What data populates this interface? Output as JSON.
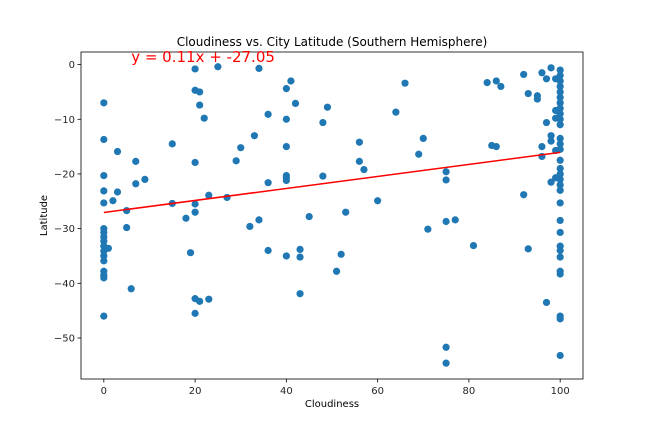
{
  "chart_data": {
    "type": "scatter",
    "title": "Cloudiness vs. City Latitude (Southern Hemisphere)",
    "xlabel": "Cloudiness",
    "ylabel": "Latitude",
    "xlim": [
      -5,
      105
    ],
    "ylim": [
      -57.5,
      2.3
    ],
    "xticks": [
      0,
      20,
      40,
      60,
      80,
      100
    ],
    "yticks": [
      0,
      -10,
      -20,
      -30,
      -40,
      -50
    ],
    "xtick_labels": [
      "0",
      "20",
      "40",
      "60",
      "80",
      "100"
    ],
    "ytick_labels": [
      "0",
      "−10",
      "−20",
      "−30",
      "−40",
      "−50"
    ],
    "grid": false,
    "point_color": "#1f77b4",
    "regression_line": {
      "slope": 0.11,
      "intercept": -27.05,
      "x_range": [
        0,
        100
      ],
      "color": "#ff0000",
      "equation": "y = 0.11x + -27.05",
      "equation_x": 6,
      "equation_y": 0.5
    },
    "points": [
      [
        0,
        -7
      ],
      [
        0,
        -13.7
      ],
      [
        0,
        -20.3
      ],
      [
        0,
        -23.1
      ],
      [
        0,
        -25.3
      ],
      [
        0,
        -30
      ],
      [
        0,
        -30.7
      ],
      [
        0,
        -31.5
      ],
      [
        0,
        -32.3
      ],
      [
        0,
        -33.2
      ],
      [
        0,
        -34.1
      ],
      [
        0,
        -35
      ],
      [
        0,
        -35.9
      ],
      [
        0,
        -37.8
      ],
      [
        0,
        -38.5
      ],
      [
        0,
        -39
      ],
      [
        0,
        -46
      ],
      [
        1,
        -33.6
      ],
      [
        2,
        -24.9
      ],
      [
        3,
        -15.9
      ],
      [
        3,
        -23.3
      ],
      [
        5,
        -26.7
      ],
      [
        5,
        -29.8
      ],
      [
        6,
        -41
      ],
      [
        7,
        -17.7
      ],
      [
        7,
        -21.8
      ],
      [
        9,
        -21
      ],
      [
        15,
        -25.4
      ],
      [
        15,
        -14.5
      ],
      [
        18,
        -28.1
      ],
      [
        19,
        -34.4
      ],
      [
        20,
        -0.8
      ],
      [
        20,
        -4.7
      ],
      [
        20,
        -17.9
      ],
      [
        20,
        -25.5
      ],
      [
        20,
        -27
      ],
      [
        20,
        -42.8
      ],
      [
        20,
        -45.5
      ],
      [
        21,
        -5
      ],
      [
        21,
        -7.4
      ],
      [
        21,
        -43.3
      ],
      [
        22,
        -9.8
      ],
      [
        23,
        -42.9
      ],
      [
        23,
        -23.9
      ],
      [
        25,
        -0.4
      ],
      [
        27,
        -24.3
      ],
      [
        29,
        -17.6
      ],
      [
        30,
        -15.2
      ],
      [
        32,
        -29.6
      ],
      [
        33,
        -13
      ],
      [
        34,
        -0.7
      ],
      [
        34,
        -28.4
      ],
      [
        36,
        -9.1
      ],
      [
        36,
        -21.6
      ],
      [
        36,
        -34
      ],
      [
        40,
        -4.4
      ],
      [
        40,
        -10
      ],
      [
        40,
        -15
      ],
      [
        40,
        -20.3
      ],
      [
        40,
        -20.7
      ],
      [
        40,
        -21.2
      ],
      [
        40,
        -35
      ],
      [
        41,
        -3
      ],
      [
        42,
        -7.1
      ],
      [
        43,
        -33.8
      ],
      [
        43,
        -35.2
      ],
      [
        43,
        -41.9
      ],
      [
        45,
        -27.8
      ],
      [
        48,
        -10.6
      ],
      [
        48,
        -20.4
      ],
      [
        49,
        -7.8
      ],
      [
        51,
        -37.8
      ],
      [
        52,
        -34.7
      ],
      [
        53,
        -27
      ],
      [
        56,
        -14.2
      ],
      [
        56,
        -17.7
      ],
      [
        57,
        -19.2
      ],
      [
        60,
        -24.9
      ],
      [
        64,
        -8.7
      ],
      [
        66,
        -3.4
      ],
      [
        69,
        -16.4
      ],
      [
        70,
        -13.5
      ],
      [
        71,
        -30.1
      ],
      [
        75,
        -19.6
      ],
      [
        75,
        -21.1
      ],
      [
        75,
        -28.7
      ],
      [
        75,
        -51.7
      ],
      [
        75,
        -54.6
      ],
      [
        77,
        -28.4
      ],
      [
        81,
        -33.1
      ],
      [
        84,
        -3.3
      ],
      [
        85,
        -14.8
      ],
      [
        86,
        -3
      ],
      [
        86,
        -15
      ],
      [
        87,
        -4
      ],
      [
        92,
        -1.8
      ],
      [
        92,
        -23.8
      ],
      [
        93,
        -5.3
      ],
      [
        93,
        -33.7
      ],
      [
        95,
        -5.7
      ],
      [
        95,
        -6.3
      ],
      [
        96,
        -1.5
      ],
      [
        96,
        -15
      ],
      [
        96,
        -16.8
      ],
      [
        97,
        -2.6
      ],
      [
        97,
        -10.6
      ],
      [
        97,
        -43.5
      ],
      [
        98,
        -0.6
      ],
      [
        98,
        -13
      ],
      [
        98,
        -14
      ],
      [
        98,
        -21.5
      ],
      [
        99,
        -2.6
      ],
      [
        99,
        -8.4
      ],
      [
        99,
        -9.8
      ],
      [
        99,
        -15.7
      ],
      [
        99,
        -20.7
      ],
      [
        100,
        -1
      ],
      [
        100,
        -2
      ],
      [
        100,
        -3
      ],
      [
        100,
        -4
      ],
      [
        100,
        -5
      ],
      [
        100,
        -6
      ],
      [
        100,
        -7
      ],
      [
        100,
        -8
      ],
      [
        100,
        -9
      ],
      [
        100,
        -10
      ],
      [
        100,
        -11
      ],
      [
        100,
        -13.5
      ],
      [
        100,
        -14.5
      ],
      [
        100,
        -15.5
      ],
      [
        100,
        -17.5
      ],
      [
        100,
        -19
      ],
      [
        100,
        -20
      ],
      [
        100,
        -21
      ],
      [
        100,
        -22
      ],
      [
        100,
        -23
      ],
      [
        100,
        -25.3
      ],
      [
        100,
        -28.5
      ],
      [
        100,
        -30.7
      ],
      [
        100,
        -33.2
      ],
      [
        100,
        -34
      ],
      [
        100,
        -35.2
      ],
      [
        100,
        -37.8
      ],
      [
        100,
        -38.3
      ],
      [
        100,
        -46
      ],
      [
        100,
        -46.5
      ],
      [
        100,
        -53.2
      ]
    ]
  }
}
